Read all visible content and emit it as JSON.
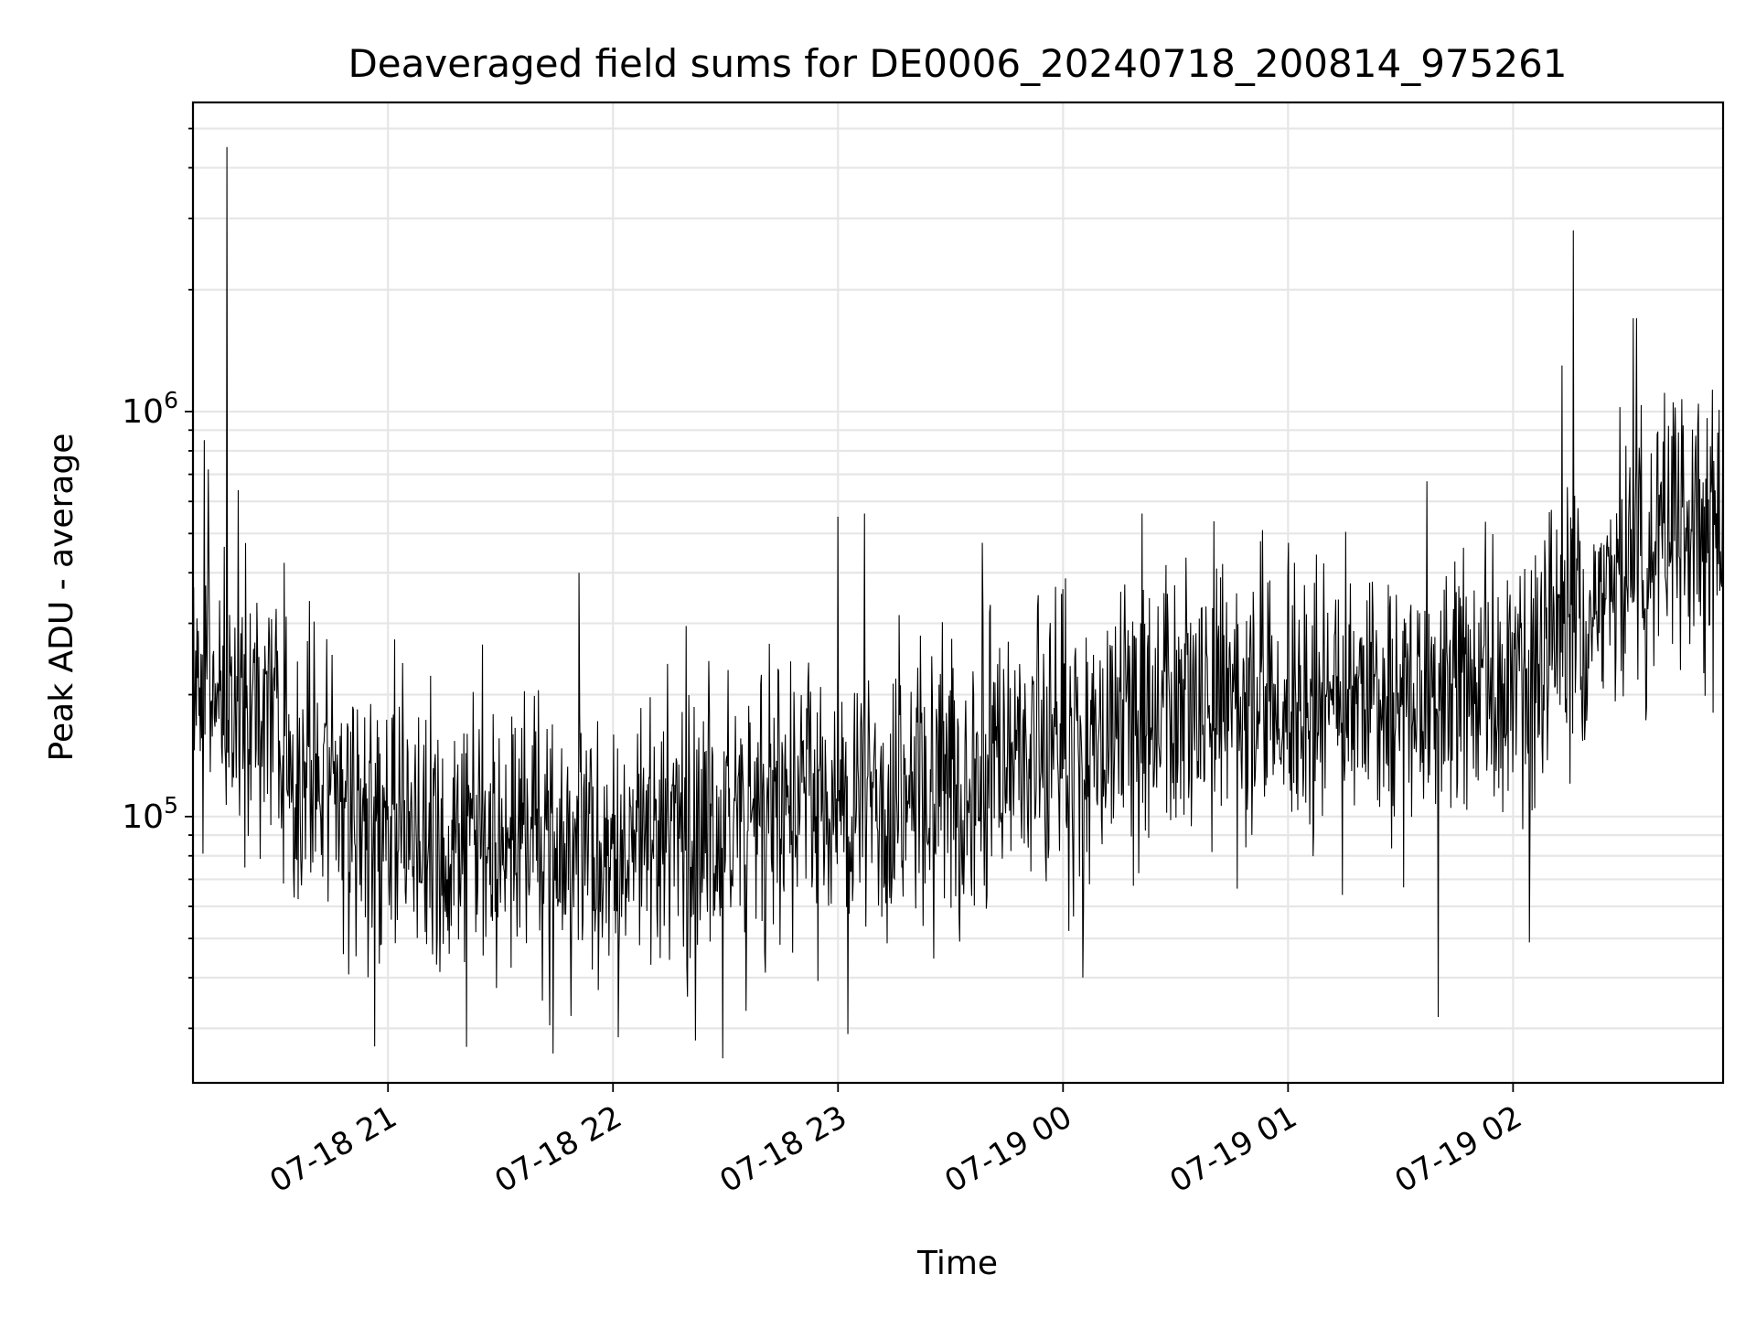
{
  "chart_data": {
    "type": "line",
    "title": "Deaveraged field sums for DE0006_20240718_200814_975261",
    "xlabel": "Time",
    "ylabel": "Peak ADU - average",
    "yscale": "log",
    "ylim": [
      22000,
      5800000
    ],
    "xlim": [
      "2024-07-18 20:08",
      "2024-07-19 02:56"
    ],
    "x_ticks": [
      {
        "time": "2024-07-18 21:00",
        "label": "07-18 21"
      },
      {
        "time": "2024-07-18 22:00",
        "label": "07-18 22"
      },
      {
        "time": "2024-07-18 23:00",
        "label": "07-18 23"
      },
      {
        "time": "2024-07-19 00:00",
        "label": "07-19 00"
      },
      {
        "time": "2024-07-19 01:00",
        "label": "07-19 01"
      },
      {
        "time": "2024-07-19 02:00",
        "label": "07-19 02"
      }
    ],
    "y_ticks": [
      {
        "value": 100000,
        "base": "10",
        "exp": "5"
      },
      {
        "value": 1000000,
        "base": "10",
        "exp": "6"
      }
    ],
    "grid": true,
    "line_color": "#000000",
    "grid_color": "#e6e6e6",
    "trend": [
      {
        "time": "2024-07-18 20:08",
        "value": 260000
      },
      {
        "time": "2024-07-18 20:20",
        "value": 200000
      },
      {
        "time": "2024-07-18 20:35",
        "value": 130000
      },
      {
        "time": "2024-07-18 21:00",
        "value": 95000
      },
      {
        "time": "2024-07-18 21:30",
        "value": 85000
      },
      {
        "time": "2024-07-18 22:00",
        "value": 85000
      },
      {
        "time": "2024-07-18 22:30",
        "value": 100000
      },
      {
        "time": "2024-07-18 23:00",
        "value": 110000
      },
      {
        "time": "2024-07-18 23:30",
        "value": 130000
      },
      {
        "time": "2024-07-19 00:00",
        "value": 150000
      },
      {
        "time": "2024-07-19 00:30",
        "value": 180000
      },
      {
        "time": "2024-07-19 01:00",
        "value": 190000
      },
      {
        "time": "2024-07-19 01:30",
        "value": 185000
      },
      {
        "time": "2024-07-19 02:00",
        "value": 220000
      },
      {
        "time": "2024-07-19 02:30",
        "value": 400000
      },
      {
        "time": "2024-07-19 02:56",
        "value": 600000
      }
    ],
    "spikes": [
      {
        "time": "2024-07-18 20:17",
        "value": 4500000
      },
      {
        "time": "2024-07-18 20:11",
        "value": 850000
      },
      {
        "time": "2024-07-18 20:12",
        "value": 720000
      },
      {
        "time": "2024-07-18 20:20",
        "value": 640000
      },
      {
        "time": "2024-07-18 21:51",
        "value": 400000
      },
      {
        "time": "2024-07-18 23:00",
        "value": 550000
      },
      {
        "time": "2024-07-18 23:07",
        "value": 560000
      },
      {
        "time": "2024-07-19 00:21",
        "value": 560000
      },
      {
        "time": "2024-07-19 02:13",
        "value": 1300000
      },
      {
        "time": "2024-07-19 02:16",
        "value": 2800000
      },
      {
        "time": "2024-07-19 02:32",
        "value": 1700000
      },
      {
        "time": "2024-07-19 02:33",
        "value": 1700000
      },
      {
        "time": "2024-07-19 02:56",
        "value": 1200000
      },
      {
        "time": "2024-07-18 21:21",
        "value": 27000
      },
      {
        "time": "2024-07-18 21:44",
        "value": 26000
      },
      {
        "time": "2024-07-18 22:22",
        "value": 28000
      },
      {
        "time": "2024-07-19 01:40",
        "value": 32000
      }
    ]
  }
}
